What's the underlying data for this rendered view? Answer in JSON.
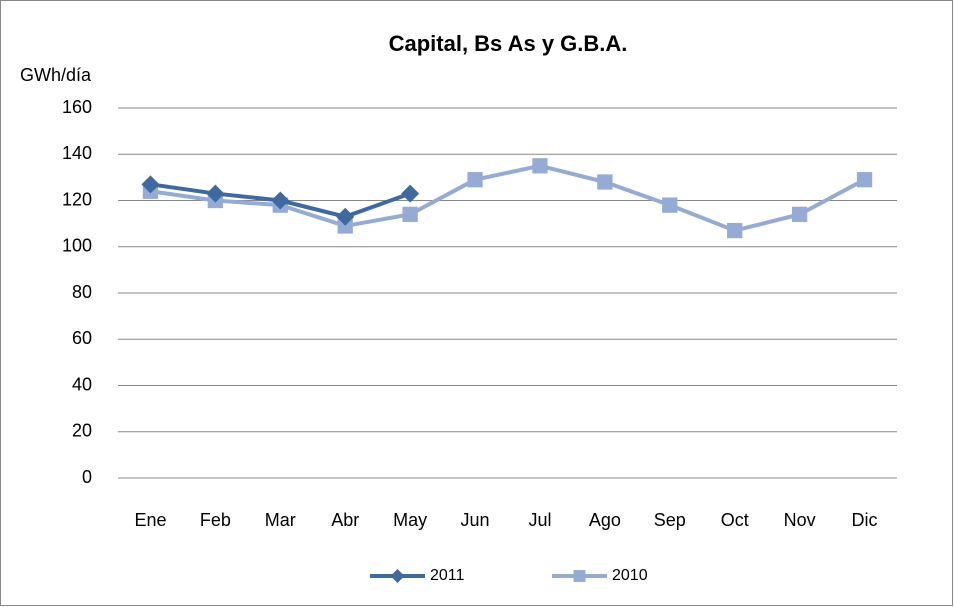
{
  "chart_data": {
    "type": "line",
    "title": "Capital, Bs As y G.B.A.",
    "y_label": "GWh/día",
    "categories": [
      "Ene",
      "Feb",
      "Mar",
      "Abr",
      "May",
      "Jun",
      "Jul",
      "Ago",
      "Sep",
      "Oct",
      "Nov",
      "Dic"
    ],
    "series": [
      {
        "name": "2011",
        "color": "#3f6aa0",
        "marker": "diamond",
        "values": [
          127,
          123,
          120,
          113,
          123,
          null,
          null,
          null,
          null,
          null,
          null,
          null
        ]
      },
      {
        "name": "2010",
        "color": "#95abd4",
        "marker": "square",
        "values": [
          124,
          120,
          118,
          109,
          114,
          129,
          135,
          128,
          118,
          107,
          114,
          129
        ]
      }
    ],
    "ylim": [
      0,
      160
    ],
    "yticks": [
      0,
      20,
      40,
      60,
      80,
      100,
      120,
      140,
      160
    ],
    "grid": true,
    "legend": "bottom"
  }
}
